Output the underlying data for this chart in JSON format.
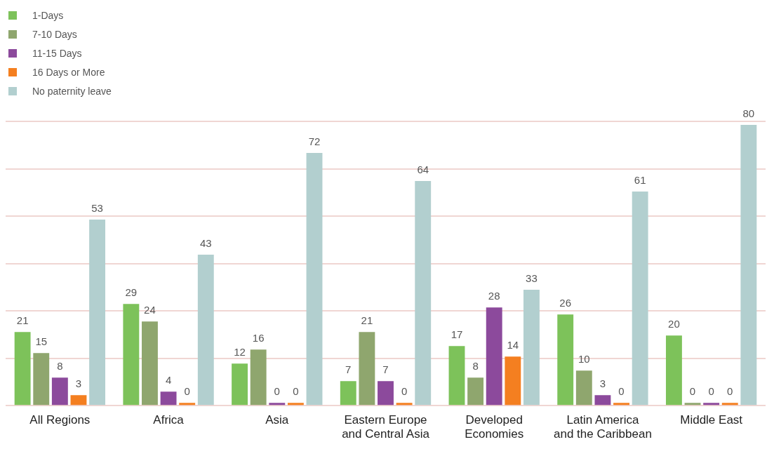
{
  "chart_data": {
    "type": "bar",
    "categories": [
      "All Regions",
      "Africa",
      "Asia",
      "Eastern Europe and Central Asia",
      "Developed Economies",
      "Latin America and the Caribbean",
      "Middle East"
    ],
    "series": [
      {
        "name": "1-Days",
        "color": "#7dc25a",
        "values": [
          21,
          29,
          12,
          7,
          17,
          26,
          20
        ]
      },
      {
        "name": "7-10 Days",
        "color": "#8fa66e",
        "values": [
          15,
          24,
          16,
          21,
          8,
          10,
          0
        ]
      },
      {
        "name": "11-15 Days",
        "color": "#8c4a9c",
        "values": [
          8,
          4,
          0,
          7,
          28,
          3,
          0
        ]
      },
      {
        "name": "16 Days or More",
        "color": "#f47f20",
        "values": [
          3,
          0,
          0,
          0,
          14,
          0,
          0
        ]
      },
      {
        "name": "No paternity leave",
        "color": "#b2cfcf",
        "values": [
          53,
          43,
          72,
          64,
          33,
          61,
          80
        ]
      }
    ],
    "ylim": [
      0,
      81
    ],
    "yticks": [
      {
        "value": 0,
        "label": null
      },
      {
        "value": 13.5,
        "label": null
      },
      {
        "value": 27,
        "label": null
      },
      {
        "value": 40.5,
        "label": null
      },
      {
        "value": 54,
        "label": null
      },
      {
        "value": 67.5,
        "label": null
      },
      {
        "value": 81,
        "label": null
      }
    ],
    "grid": "y",
    "legend": "top left",
    "data_labels": true,
    "tick_labels": "x"
  }
}
